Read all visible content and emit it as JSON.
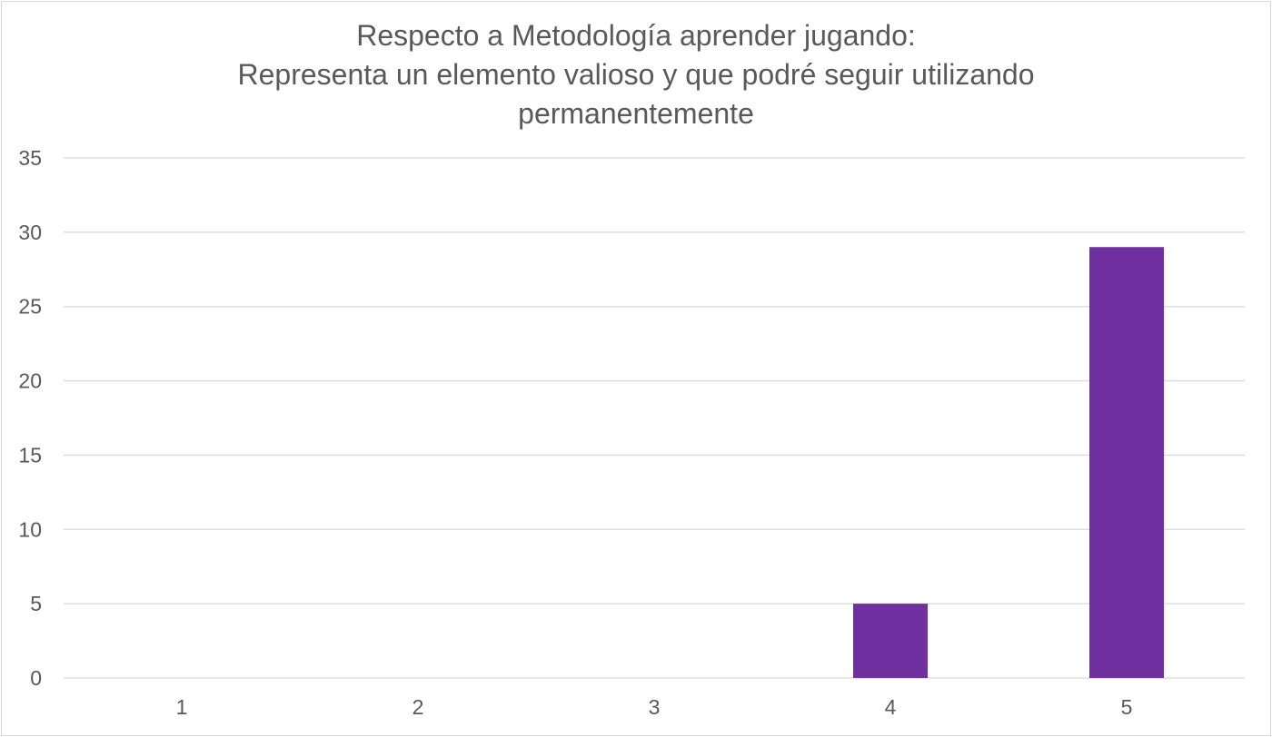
{
  "chart_data": {
    "type": "bar",
    "title_lines": [
      "Respecto a Metodología aprender jugando:",
      "Representa un elemento valioso y que podré seguir utilizando",
      "permanentemente"
    ],
    "categories": [
      "1",
      "2",
      "3",
      "4",
      "5"
    ],
    "values": [
      0,
      0,
      0,
      5,
      29
    ],
    "ylim": [
      0,
      35
    ],
    "yticks": [
      0,
      5,
      10,
      15,
      20,
      25,
      30,
      35
    ],
    "grid": true,
    "legend": "none",
    "bar_color": "#7030A0",
    "grid_color": "#d9d9d9",
    "text_color": "#595959"
  }
}
